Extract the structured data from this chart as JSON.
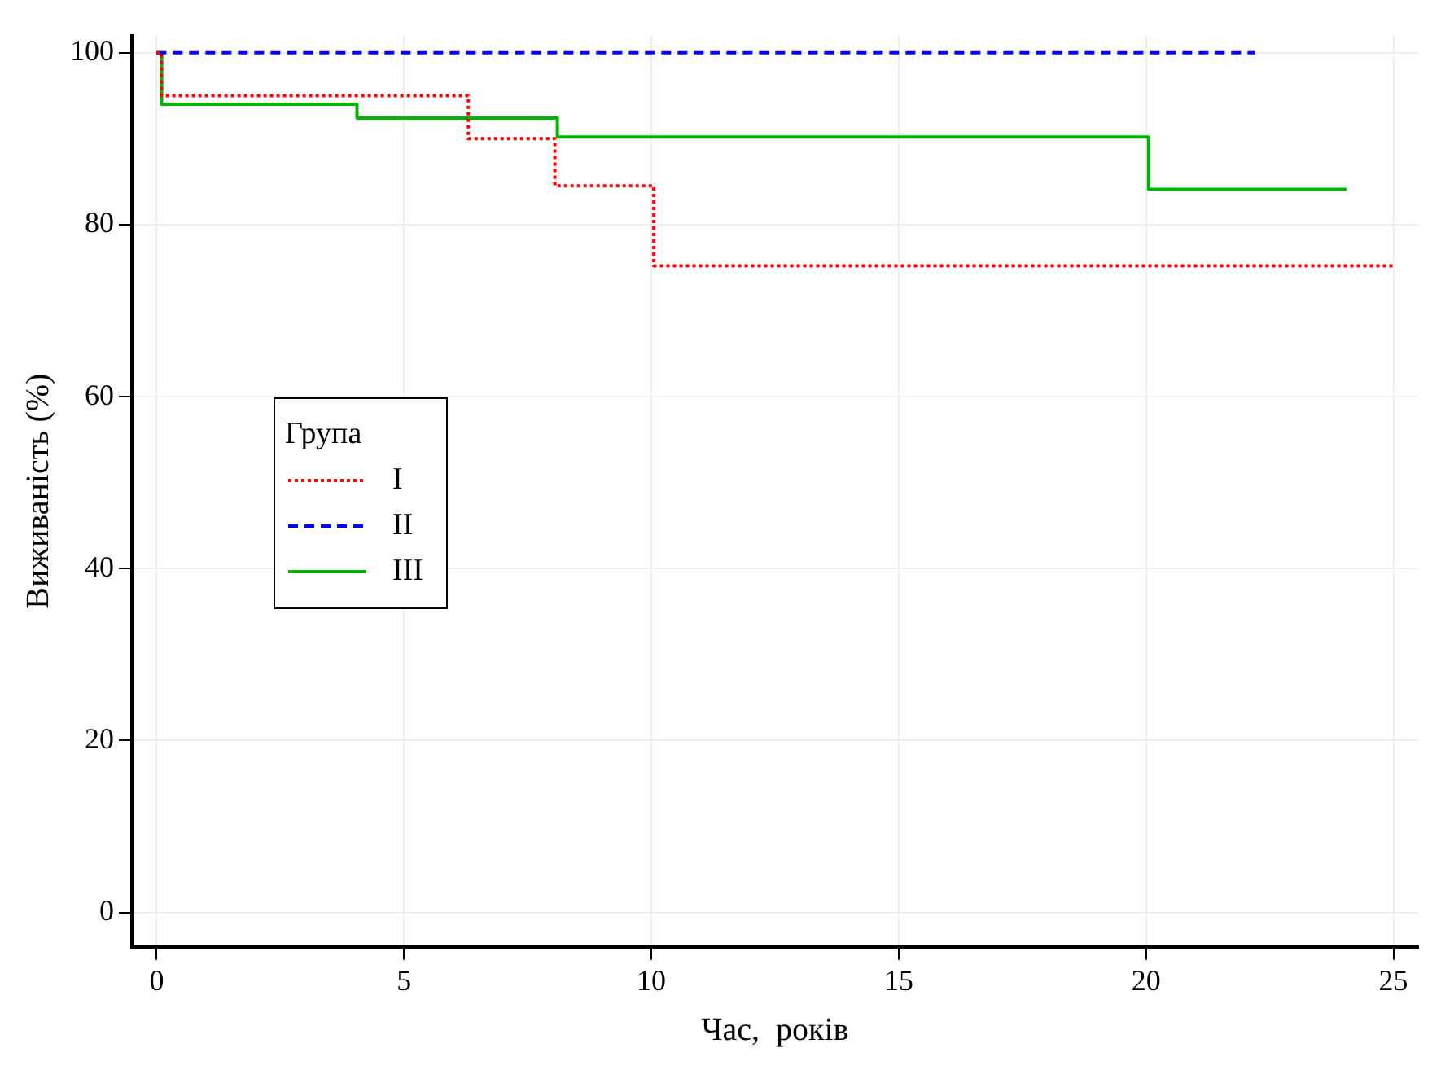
{
  "chart_data": {
    "type": "step",
    "xlabel": "Час,  років",
    "ylabel": "Виживаність (%)",
    "legend_title": "Група",
    "xlim": [
      -0.5,
      25.5
    ],
    "ylim": [
      -4,
      102
    ],
    "xticks": [
      0,
      5,
      10,
      15,
      20,
      25
    ],
    "yticks": [
      0,
      20,
      40,
      60,
      80,
      100
    ],
    "grid": true,
    "legend": "left",
    "marker": "none",
    "series": [
      {
        "name": "I",
        "color": "#ff0000",
        "line_style": "dotted",
        "x": [
          0,
          0.1,
          6.3,
          8.05,
          10.05,
          25
        ],
        "values": [
          100,
          95,
          90,
          84.5,
          75.2,
          75.2
        ]
      },
      {
        "name": "II",
        "color": "#0000ff",
        "line_style": "dashed",
        "x": [
          0,
          22.2
        ],
        "values": [
          100,
          100
        ]
      },
      {
        "name": "III",
        "color": "#00b400",
        "line_style": "solid",
        "x": [
          0,
          0.1,
          4.05,
          8.1,
          20.05,
          24.05
        ],
        "values": [
          100,
          94,
          92.4,
          90.2,
          84.1,
          84.1
        ]
      }
    ]
  }
}
